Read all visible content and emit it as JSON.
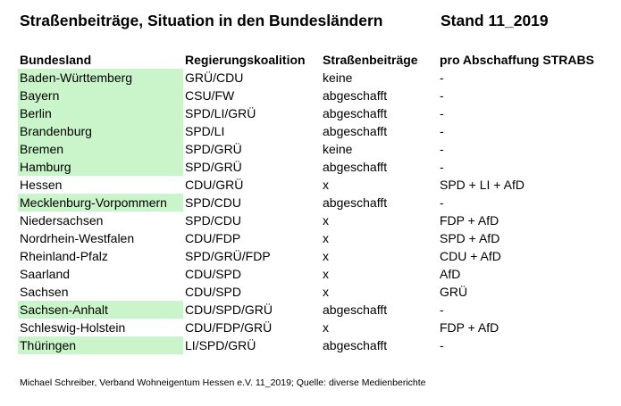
{
  "page": {
    "title": "Straßenbeiträge, Situation in den Bundesländern",
    "stand": "Stand 11_2019",
    "footer": "Michael Schreiber, Verband Wohneigentum Hessen e.V. 11_2019; Quelle: diverse Medienberichte"
  },
  "table": {
    "highlight_color": "#caf4ca",
    "columns": [
      "Bundesland",
      "Regierungskoalition",
      "Straßenbeiträge",
      "pro Abschaffung STRABS"
    ],
    "rows": [
      {
        "bundesland": "Baden-Württemberg",
        "koalition": "GRÜ/CDU",
        "strassenbeitraege": "keine",
        "pro_abschaffung": "-",
        "highlighted": true
      },
      {
        "bundesland": "Bayern",
        "koalition": "CSU/FW",
        "strassenbeitraege": "abgeschafft",
        "pro_abschaffung": "-",
        "highlighted": true
      },
      {
        "bundesland": "Berlin",
        "koalition": "SPD/LI/GRÜ",
        "strassenbeitraege": "abgeschafft",
        "pro_abschaffung": "-",
        "highlighted": true
      },
      {
        "bundesland": "Brandenburg",
        "koalition": "SPD/LI",
        "strassenbeitraege": "abgeschafft",
        "pro_abschaffung": "-",
        "highlighted": true
      },
      {
        "bundesland": "Bremen",
        "koalition": "SPD/GRÜ",
        "strassenbeitraege": "keine",
        "pro_abschaffung": "-",
        "highlighted": true
      },
      {
        "bundesland": "Hamburg",
        "koalition": "SPD/GRÜ",
        "strassenbeitraege": "abgeschafft",
        "pro_abschaffung": "-",
        "highlighted": true
      },
      {
        "bundesland": "Hessen",
        "koalition": "CDU/GRÜ",
        "strassenbeitraege": "x",
        "pro_abschaffung": "SPD + LI + AfD",
        "highlighted": false
      },
      {
        "bundesland": "Mecklenburg-Vorpommern",
        "koalition": "SPD/CDU",
        "strassenbeitraege": "abgeschafft",
        "pro_abschaffung": "-",
        "highlighted": true
      },
      {
        "bundesland": "Niedersachsen",
        "koalition": "SPD/CDU",
        "strassenbeitraege": "x",
        "pro_abschaffung": "FDP + AfD",
        "highlighted": false
      },
      {
        "bundesland": "Nordrhein-Westfalen",
        "koalition": "CDU/FDP",
        "strassenbeitraege": "x",
        "pro_abschaffung": "SPD + AfD",
        "highlighted": false
      },
      {
        "bundesland": "Rheinland-Pfalz",
        "koalition": "SPD/GRÜ/FDP",
        "strassenbeitraege": "x",
        "pro_abschaffung": "CDU + AfD",
        "highlighted": false
      },
      {
        "bundesland": "Saarland",
        "koalition": "CDU/SPD",
        "strassenbeitraege": "x",
        "pro_abschaffung": "AfD",
        "highlighted": false
      },
      {
        "bundesland": "Sachsen",
        "koalition": "CDU/SPD",
        "strassenbeitraege": "x",
        "pro_abschaffung": "GRÜ",
        "highlighted": false
      },
      {
        "bundesland": "Sachsen-Anhalt",
        "koalition": "CDU/SPD/GRÜ",
        "strassenbeitraege": "abgeschafft",
        "pro_abschaffung": "-",
        "highlighted": true
      },
      {
        "bundesland": "Schleswig-Holstein",
        "koalition": "CDU/FDP/GRÜ",
        "strassenbeitraege": "x",
        "pro_abschaffung": "FDP + AfD",
        "highlighted": false
      },
      {
        "bundesland": "Thüringen",
        "koalition": "LI/SPD/GRÜ",
        "strassenbeitraege": "abgeschafft",
        "pro_abschaffung": "-",
        "highlighted": true
      }
    ]
  }
}
